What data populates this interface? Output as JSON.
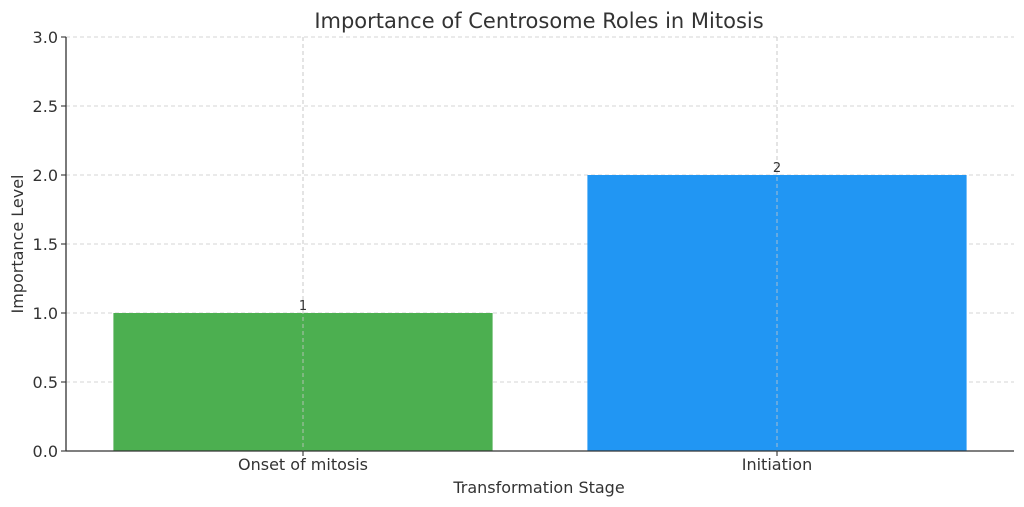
{
  "chart_data": {
    "type": "bar",
    "title": "Importance of Centrosome Roles in Mitosis",
    "xlabel": "Transformation Stage",
    "ylabel": "Importance Level",
    "categories": [
      "Onset of mitosis",
      "Initiation"
    ],
    "values": [
      1,
      2
    ],
    "data_labels": [
      "1",
      "2"
    ],
    "colors": [
      "#4caf50",
      "#2196f3"
    ],
    "ylim": [
      0,
      3.0
    ],
    "yticks": [
      0.0,
      0.5,
      1.0,
      1.5,
      2.0,
      2.5,
      3.0
    ],
    "ytick_labels": [
      "0.0",
      "0.5",
      "1.0",
      "1.5",
      "2.0",
      "2.5",
      "3.0"
    ],
    "grid": true,
    "legend": "none"
  }
}
